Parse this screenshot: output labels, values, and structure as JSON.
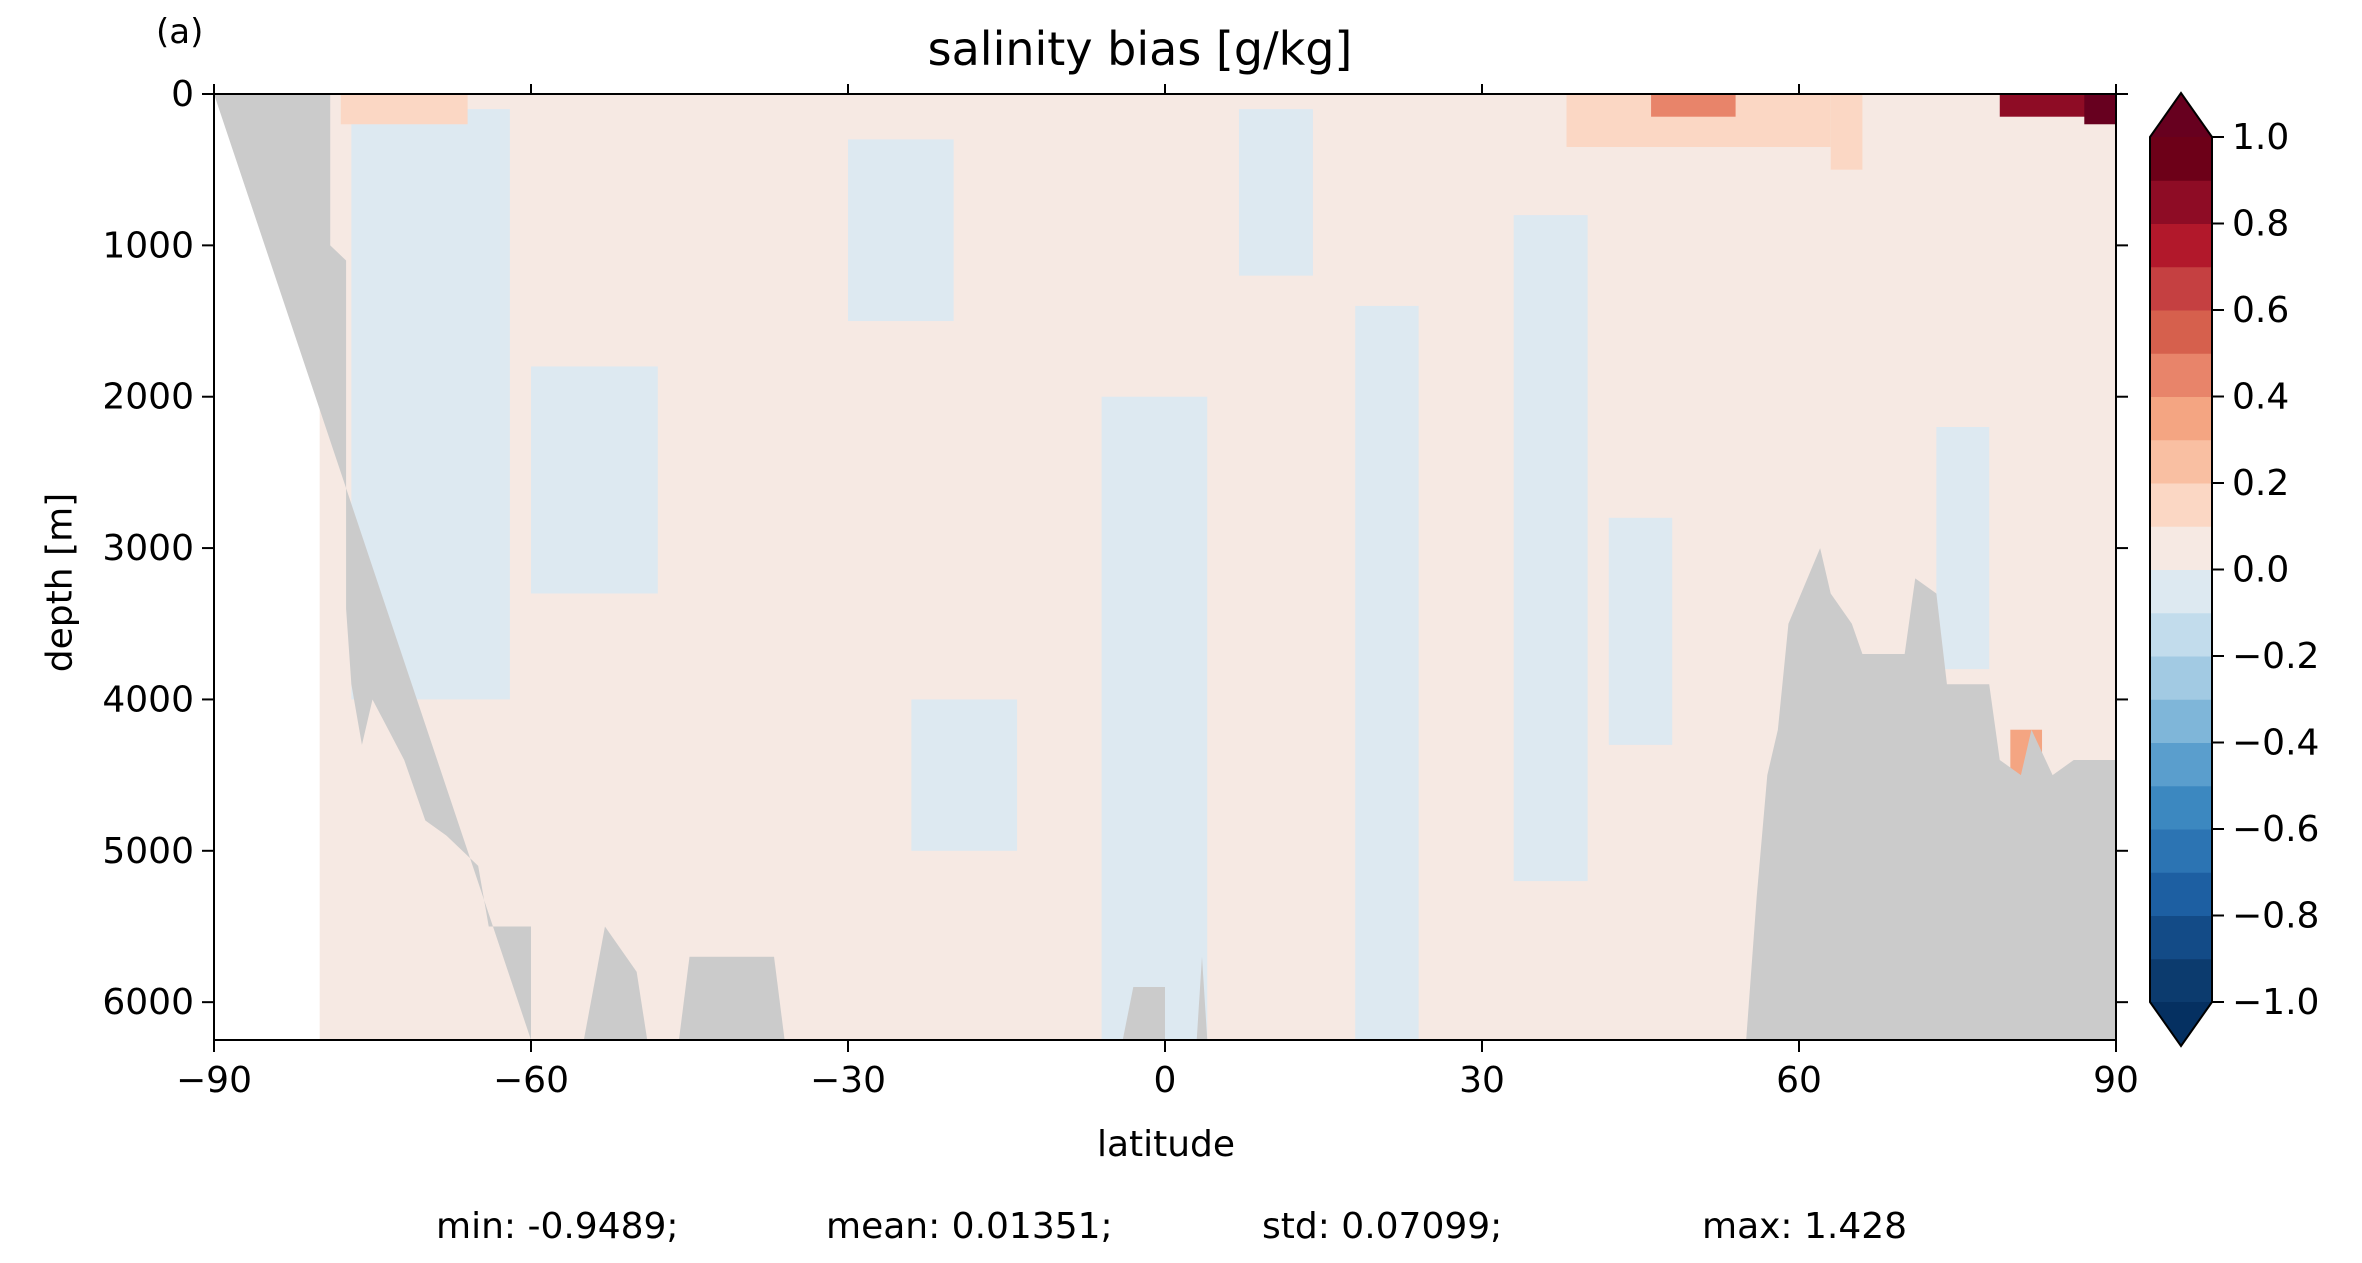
{
  "panel_label": "(a)",
  "chart_data": {
    "type": "heatmap",
    "title": "salinity bias [g/kg]",
    "xlabel": "latitude",
    "ylabel": "depth [m]",
    "xlim": [
      -90,
      90
    ],
    "ylim": [
      6250,
      0
    ],
    "y_inverted": true,
    "x_ticks": [
      -90,
      -60,
      -30,
      0,
      30,
      60,
      90
    ],
    "x_tick_labels": [
      "−90",
      "−60",
      "−30",
      "0",
      "30",
      "60",
      "90"
    ],
    "y_ticks": [
      0,
      1000,
      2000,
      3000,
      4000,
      5000,
      6000
    ],
    "y_tick_labels": [
      "0",
      "1000",
      "2000",
      "3000",
      "4000",
      "5000",
      "6000"
    ],
    "colorbar": {
      "range": [
        -1.0,
        1.0
      ],
      "extend": "both",
      "levels": [
        -1.0,
        -0.9,
        -0.8,
        -0.7,
        -0.6,
        -0.5,
        -0.4,
        -0.3,
        -0.2,
        -0.1,
        0.0,
        0.1,
        0.2,
        0.3,
        0.4,
        0.5,
        0.6,
        0.7,
        0.8,
        0.9,
        1.0
      ],
      "tick_values": [
        1.0,
        0.8,
        0.6,
        0.4,
        0.2,
        0.0,
        -0.2,
        -0.4,
        -0.6,
        -0.8,
        -1.0
      ],
      "tick_labels": [
        "1.0",
        "0.8",
        "0.6",
        "0.4",
        "0.2",
        "0.0",
        "−0.2",
        "−0.4",
        "−0.6",
        "−0.8",
        "−1.0"
      ],
      "colors": [
        "#0c3b6e",
        "#134b87",
        "#1d5fa2",
        "#2c74b3",
        "#3c88c0",
        "#5a9ecd",
        "#7fb6d9",
        "#a2cae3",
        "#c2dcec",
        "#dde9f1",
        "#f6e9e3",
        "#fbd7c4",
        "#f9bfa2",
        "#f4a582",
        "#e8846a",
        "#d6604d",
        "#c54041",
        "#b2182b",
        "#8e0c25",
        "#6d0018"
      ],
      "under_color": "#053061",
      "over_color": "#67001f"
    },
    "land_color": "#cbcbcb",
    "bathymetry_south": [
      [
        -90,
        0
      ],
      [
        -79,
        0
      ],
      [
        -79,
        1000
      ],
      [
        -77.5,
        1100
      ],
      [
        -77.5,
        3400
      ],
      [
        -77,
        3900
      ],
      [
        -76,
        4300
      ],
      [
        -75,
        4000
      ],
      [
        -72,
        4400
      ],
      [
        -70,
        4800
      ],
      [
        -68,
        4900
      ],
      [
        -65,
        5100
      ],
      [
        -64,
        5500
      ],
      [
        -60,
        5500
      ],
      [
        -60,
        6250
      ]
    ],
    "bathymetry_ridges": [
      [
        -55,
        6250,
        -53,
        5500,
        -50,
        5800,
        -49,
        6250
      ],
      [
        -46,
        6250,
        -45,
        5700,
        -37,
        5700,
        -36,
        6250
      ],
      [
        -4,
        6250,
        -3,
        5900,
        0,
        5900,
        0,
        6250
      ],
      [
        3,
        6250,
        3.5,
        5700,
        4,
        6250
      ]
    ],
    "bathymetry_north": [
      [
        55,
        6250
      ],
      [
        56,
        5300
      ],
      [
        57,
        4500
      ],
      [
        58,
        4200
      ],
      [
        59,
        3500
      ],
      [
        62,
        3000
      ],
      [
        63,
        3300
      ],
      [
        65,
        3500
      ],
      [
        66,
        3700
      ],
      [
        70,
        3700
      ],
      [
        71,
        3200
      ],
      [
        73,
        3300
      ],
      [
        74,
        3900
      ],
      [
        78,
        3900
      ],
      [
        79,
        4400
      ],
      [
        81,
        4500
      ],
      [
        82,
        4200
      ],
      [
        84,
        4500
      ],
      [
        86,
        4400
      ],
      [
        90,
        4400
      ],
      [
        90,
        6250
      ]
    ],
    "bias_patches": [
      {
        "lat": [
          -80,
          90
        ],
        "depth": [
          0,
          6250
        ],
        "value": 0.03
      },
      {
        "lat": [
          -77,
          -62
        ],
        "depth": [
          100,
          4000
        ],
        "value": -0.04
      },
      {
        "lat": [
          -60,
          -48
        ],
        "depth": [
          1800,
          3300
        ],
        "value": -0.04
      },
      {
        "lat": [
          -30,
          -20
        ],
        "depth": [
          300,
          1500
        ],
        "value": -0.05
      },
      {
        "lat": [
          -24,
          -14
        ],
        "depth": [
          4000,
          5000
        ],
        "value": -0.05
      },
      {
        "lat": [
          -6,
          4
        ],
        "depth": [
          2000,
          6250
        ],
        "value": -0.04
      },
      {
        "lat": [
          7,
          14
        ],
        "depth": [
          100,
          1200
        ],
        "value": -0.05
      },
      {
        "lat": [
          18,
          24
        ],
        "depth": [
          1400,
          6250
        ],
        "value": -0.05
      },
      {
        "lat": [
          33,
          40
        ],
        "depth": [
          800,
          5200
        ],
        "value": -0.05
      },
      {
        "lat": [
          42,
          48
        ],
        "depth": [
          2800,
          4300
        ],
        "value": -0.05
      },
      {
        "lat": [
          73,
          78
        ],
        "depth": [
          2200,
          3800
        ],
        "value": -0.05
      },
      {
        "lat": [
          -78,
          -66
        ],
        "depth": [
          0,
          200
        ],
        "value": 0.12
      },
      {
        "lat": [
          38,
          63
        ],
        "depth": [
          0,
          350
        ],
        "value": 0.15
      },
      {
        "lat": [
          46,
          54
        ],
        "depth": [
          0,
          150
        ],
        "value": 0.45
      },
      {
        "lat": [
          63,
          66
        ],
        "depth": [
          0,
          500
        ],
        "value": 0.15
      },
      {
        "lat": [
          79,
          88
        ],
        "depth": [
          0,
          150
        ],
        "value": 0.85
      },
      {
        "lat": [
          87,
          90
        ],
        "depth": [
          0,
          200
        ],
        "value": 1.2
      },
      {
        "lat": [
          80,
          83
        ],
        "depth": [
          4200,
          4500
        ],
        "value": 0.3
      }
    ]
  },
  "stats": {
    "min": "min: -0.9489;",
    "mean": "mean: 0.01351;",
    "std": "std: 0.07099;",
    "max": "max: 1.428"
  }
}
